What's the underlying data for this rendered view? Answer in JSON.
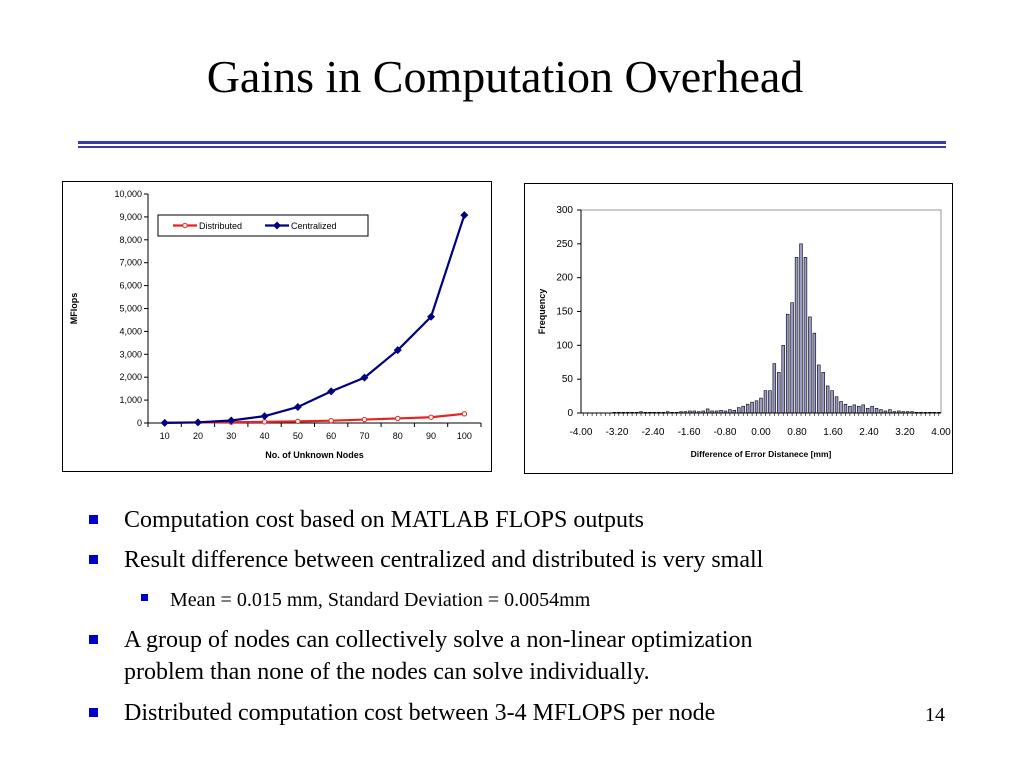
{
  "slide": {
    "title": "Gains in Computation Overhead",
    "page_number": "14",
    "accent_color": "#0000c8"
  },
  "bullets": [
    {
      "level": 1,
      "lines": [
        "Computation cost based on MATLAB FLOPS outputs"
      ]
    },
    {
      "level": 1,
      "lines": [
        "Result difference between centralized and distributed is very small"
      ]
    },
    {
      "level": 2,
      "lines": [
        "Mean = 0.015 mm, Standard Deviation = 0.0054mm"
      ]
    },
    {
      "level": 1,
      "lines": [
        "A group of nodes can collectively solve a non-linear optimization",
        "problem than none of the nodes can solve individually."
      ]
    },
    {
      "level": 1,
      "lines": [
        "Distributed computation cost between 3-4 MFLOPS per node"
      ]
    }
  ],
  "chart_data": [
    {
      "type": "line",
      "xlabel": "No. of Unknown Nodes",
      "ylabel": "MFlops",
      "x": [
        10,
        20,
        30,
        40,
        50,
        60,
        70,
        80,
        90,
        100
      ],
      "ylim": [
        0,
        10000
      ],
      "yticks": [
        "0",
        "1,000",
        "2,000",
        "3,000",
        "4,000",
        "5,000",
        "6,000",
        "7,000",
        "8,000",
        "9,000",
        "10,000"
      ],
      "legend_position": "top",
      "grid": false,
      "series": [
        {
          "name": "Distributed",
          "color": "#e8231e",
          "marker": "circle",
          "values": [
            10,
            20,
            35,
            50,
            70,
            100,
            150,
            200,
            250,
            400
          ]
        },
        {
          "name": "Centralized",
          "color": "#000080",
          "marker": "diamond",
          "values": [
            5,
            30,
            110,
            300,
            700,
            1380,
            1980,
            3180,
            4640,
            9080
          ]
        }
      ]
    },
    {
      "type": "bar",
      "xlabel": "Difference of Error Distanece [mm]",
      "ylabel": "Frequency",
      "xlim": [
        -4.0,
        4.0
      ],
      "ylim": [
        0,
        300
      ],
      "yticks": [
        "0",
        "50",
        "100",
        "150",
        "200",
        "250",
        "300"
      ],
      "xticks": [
        "-4.00",
        "-3.20",
        "-2.40",
        "-1.60",
        "-0.80",
        "0.00",
        "0.80",
        "1.60",
        "2.40",
        "3.20",
        "4.00"
      ],
      "grid": false,
      "bin_width": 0.1,
      "bar_color": "#9a9ac8",
      "values": [
        0,
        0,
        0,
        0,
        0,
        0,
        0,
        1,
        1,
        1,
        1,
        1,
        1,
        2,
        1,
        1,
        1,
        1,
        1,
        2,
        1,
        1,
        2,
        2,
        3,
        3,
        2,
        3,
        6,
        3,
        3,
        4,
        3,
        5,
        4,
        8,
        10,
        13,
        16,
        18,
        22,
        33,
        33,
        73,
        60,
        100,
        146,
        163,
        230,
        250,
        230,
        142,
        118,
        71,
        60,
        40,
        33,
        24,
        17,
        13,
        10,
        12,
        10,
        12,
        7,
        10,
        7,
        5,
        3,
        5,
        2,
        3,
        2,
        2,
        2,
        1,
        1,
        1,
        1,
        1,
        1
      ]
    }
  ]
}
